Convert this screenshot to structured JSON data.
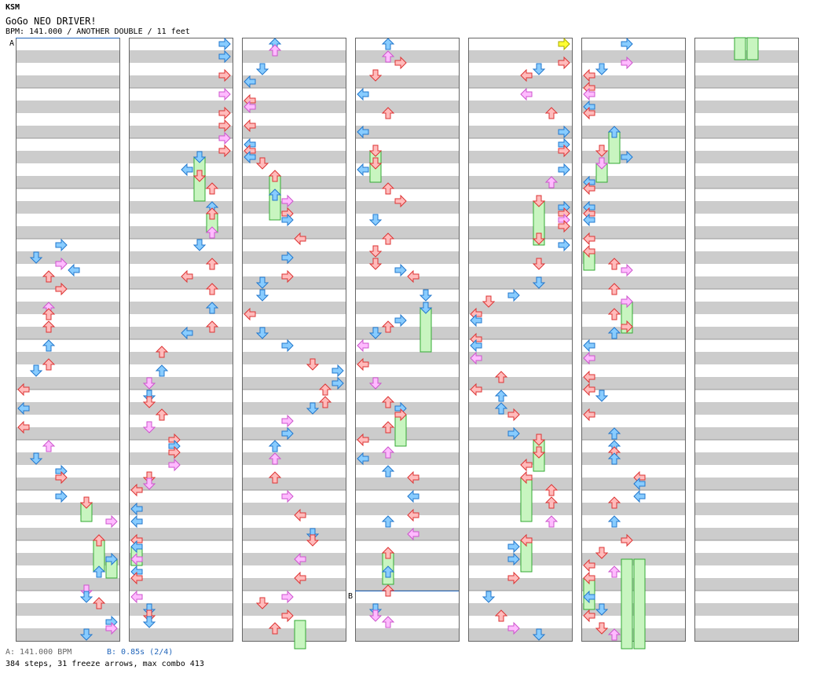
{
  "header": {
    "brand": "KSM",
    "song_title": "GoGo NEO DRIVER!",
    "meta": "BPM: 141.000 / ANOTHER DOUBLE / 11 feet"
  },
  "markers": {
    "a_label": "A",
    "b_label": "B"
  },
  "footer": {
    "bpm_a": "A: 141.000 BPM",
    "stop_b": "B: 0.85s (2/4)",
    "stats": "384 steps, 31 freeze arrows, max combo 413"
  },
  "colors": {
    "stripe": "#cccccc",
    "red_arrow": "#ffbbbb",
    "red_stroke": "#dd3333",
    "blue_arrow": "#88ccff",
    "blue_stroke": "#2277cc",
    "pink_arrow": "#ffbbff",
    "pink_stroke": "#cc55cc",
    "yellow_arrow": "#ffff33",
    "freeze_fill": "#c8f5c0",
    "freeze_stroke": "#33aa33",
    "marker_b": "#2266bb"
  }
}
